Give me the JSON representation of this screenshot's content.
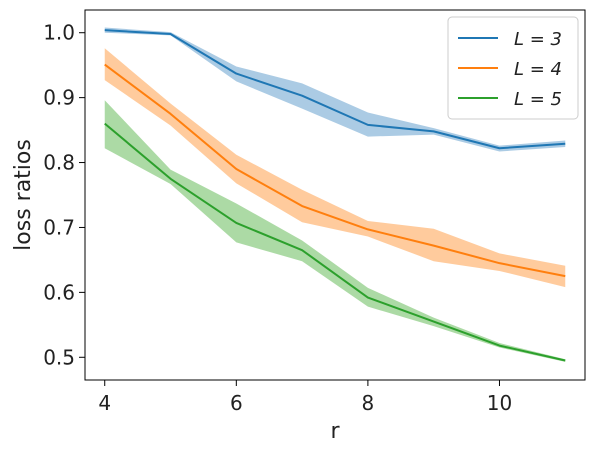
{
  "chart_data": {
    "type": "line",
    "title": "",
    "xlabel": "r",
    "ylabel": "loss ratios",
    "xlim": [
      3.7,
      11.3
    ],
    "ylim": [
      0.465,
      1.035
    ],
    "x_ticks": [
      4,
      6,
      8,
      10
    ],
    "x_tick_labels": [
      "4",
      "6",
      "8",
      "10"
    ],
    "y_ticks": [
      0.5,
      0.6,
      0.7,
      0.8,
      0.9,
      1.0
    ],
    "y_tick_labels": [
      "0.5",
      "0.6",
      "0.7",
      "0.8",
      "0.9",
      "1.0"
    ],
    "grid": false,
    "legend_position": "top-right",
    "x": [
      4,
      5,
      6,
      7,
      8,
      9,
      10,
      11
    ],
    "series": [
      {
        "name": "L = 3",
        "color": "#1f77b4",
        "band_color": "#a6c8e3",
        "values": [
          1.004,
          0.998,
          0.937,
          0.903,
          0.858,
          0.848,
          0.822,
          0.829
        ],
        "lower": [
          1.0,
          0.996,
          0.925,
          0.883,
          0.84,
          0.843,
          0.817,
          0.824
        ],
        "upper": [
          1.008,
          1.001,
          0.948,
          0.922,
          0.877,
          0.853,
          0.826,
          0.834
        ]
      },
      {
        "name": "L = 4",
        "color": "#ff7f0e",
        "band_color": "#ffc898",
        "values": [
          0.951,
          0.875,
          0.79,
          0.733,
          0.697,
          0.672,
          0.645,
          0.625
        ],
        "lower": [
          0.927,
          0.857,
          0.768,
          0.708,
          0.686,
          0.648,
          0.633,
          0.608
        ],
        "upper": [
          0.976,
          0.891,
          0.812,
          0.758,
          0.71,
          0.698,
          0.66,
          0.641
        ]
      },
      {
        "name": "L = 5",
        "color": "#2ca02c",
        "band_color": "#a8d8a0",
        "values": [
          0.86,
          0.775,
          0.707,
          0.665,
          0.592,
          0.555,
          0.518,
          0.495
        ],
        "lower": [
          0.822,
          0.767,
          0.677,
          0.648,
          0.578,
          0.548,
          0.515,
          0.493
        ],
        "upper": [
          0.896,
          0.789,
          0.737,
          0.68,
          0.607,
          0.561,
          0.522,
          0.497
        ]
      }
    ]
  }
}
